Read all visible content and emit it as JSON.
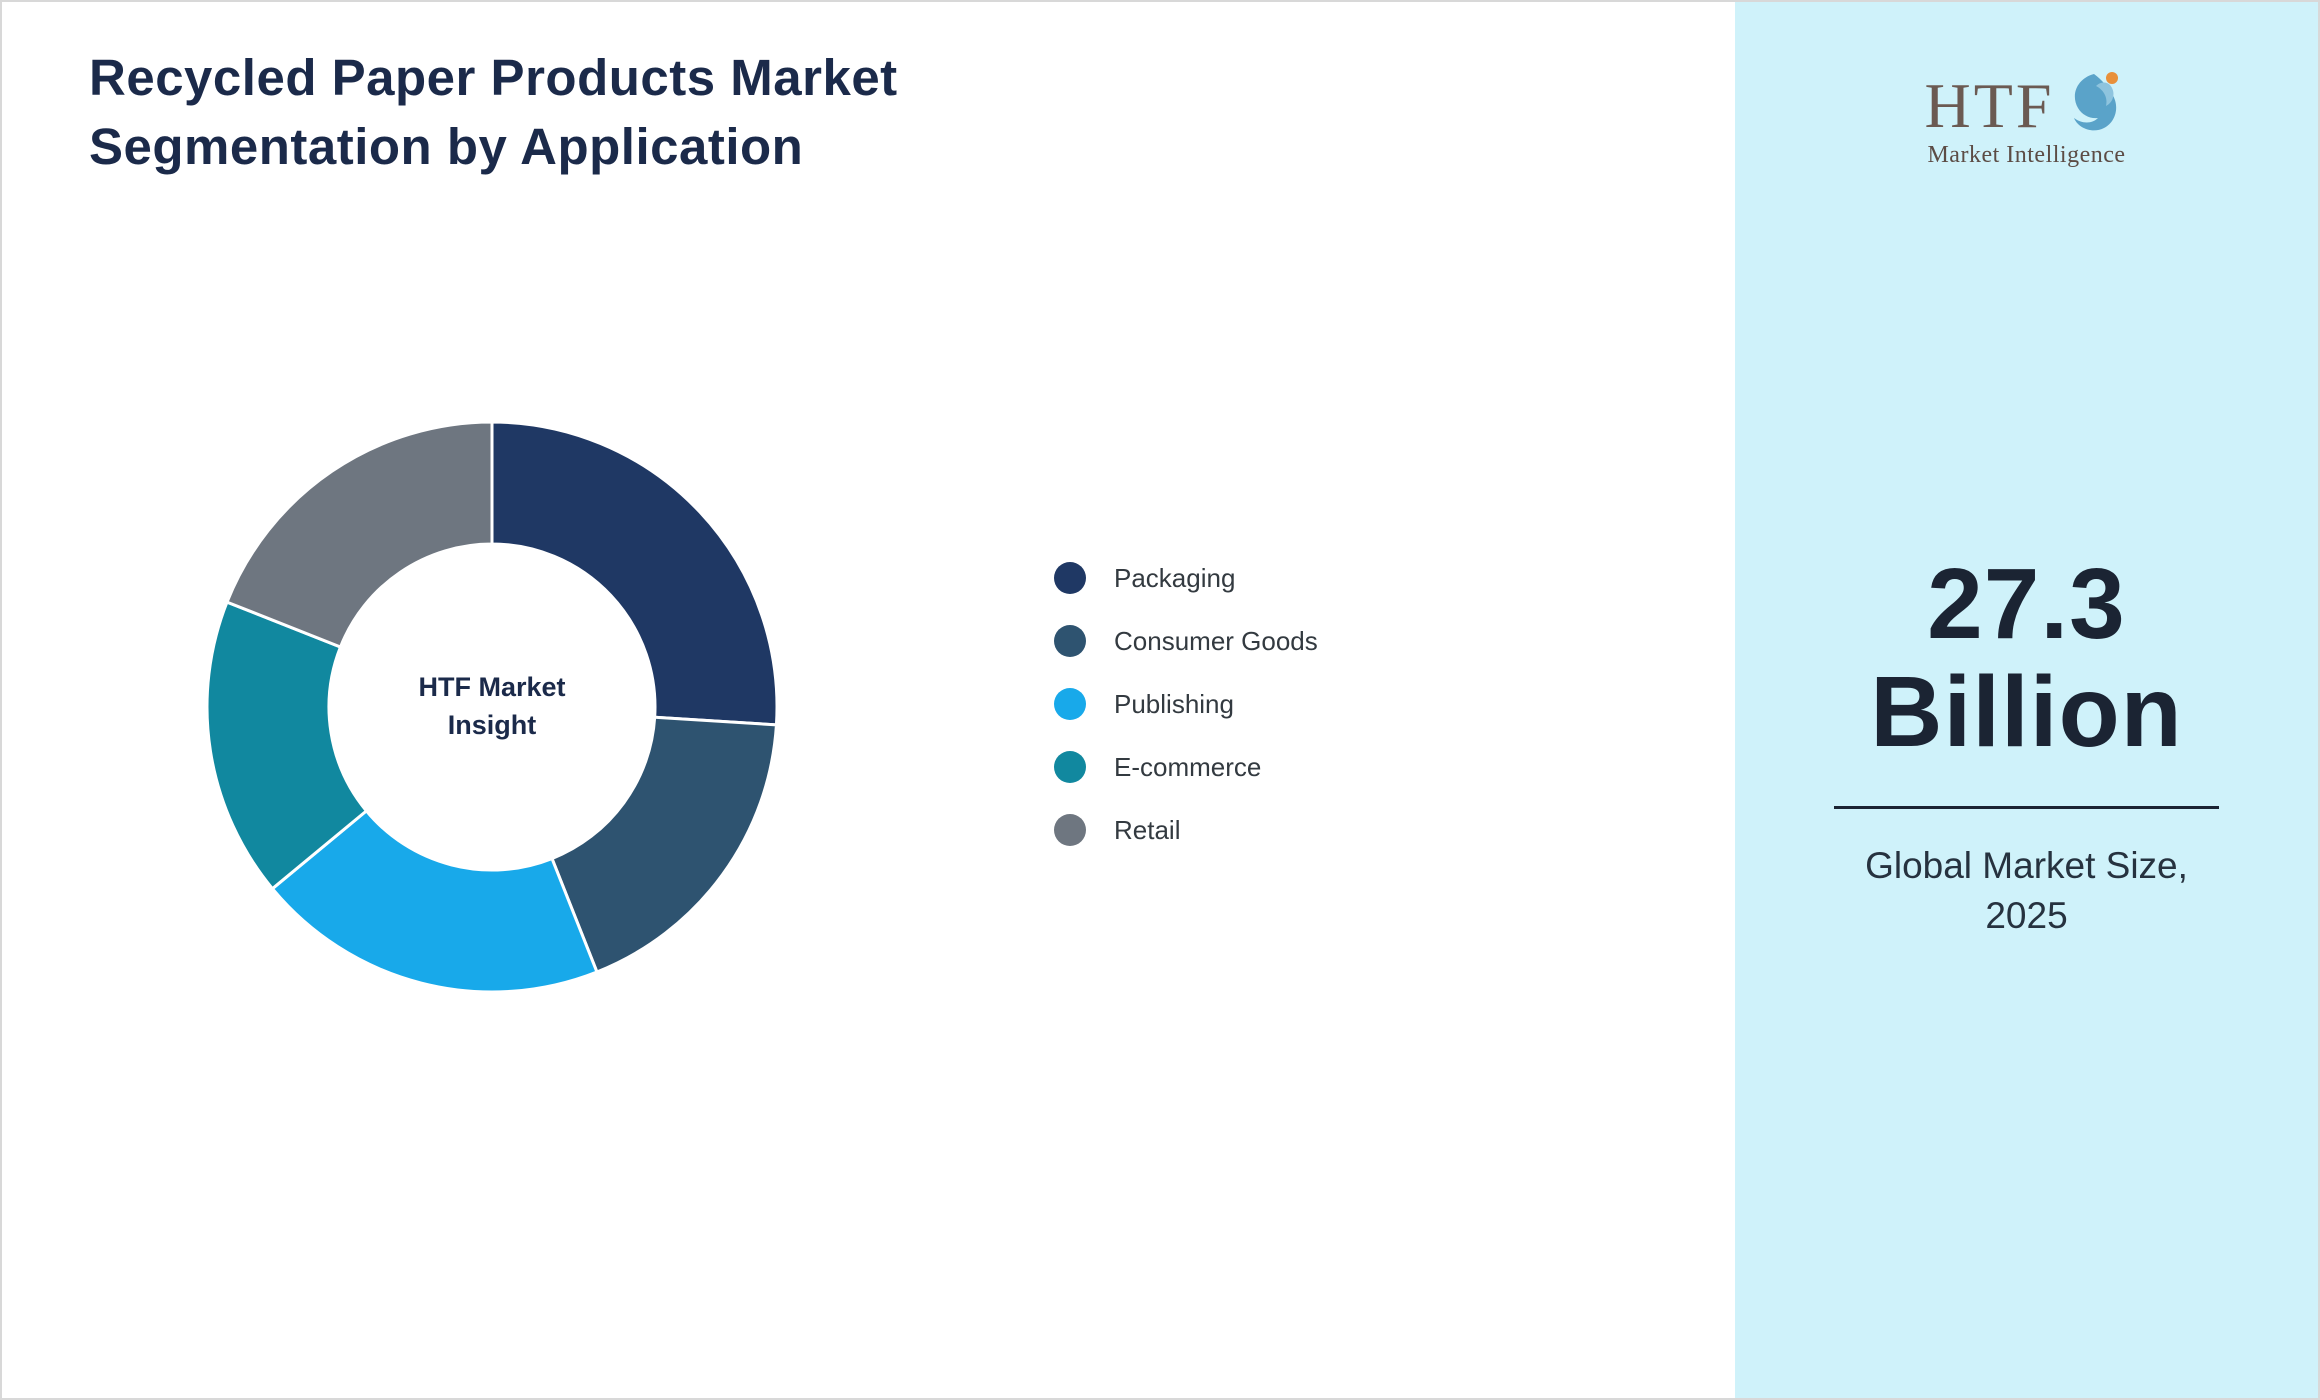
{
  "title": {
    "line1": "Recycled Paper Products Market",
    "line2": "Segmentation by Application"
  },
  "chart_data": {
    "type": "pie",
    "subtype": "donut",
    "title": "Recycled Paper Products Market Segmentation by Application",
    "categories": [
      "Packaging",
      "Consumer Goods",
      "Publishing",
      "E-commerce",
      "Retail"
    ],
    "values": [
      26,
      18,
      20,
      17,
      19
    ],
    "colors": [
      "#1f3864",
      "#2e5370",
      "#18a9ea",
      "#11889f",
      "#6e7680"
    ],
    "start_angle_deg": 0,
    "direction": "clockwise",
    "legend_position": "right",
    "center_label_line1": "HTF Market",
    "center_label_line2": "Insight"
  },
  "sidebar": {
    "background": "#cff2fa",
    "logo": {
      "text": "HTF",
      "subtext": "Market Intelligence",
      "dolphin_color": "#5aa3c9",
      "accent_color": "#e8903a"
    },
    "market_size_value": "27.3",
    "market_size_unit": "Billion",
    "caption_line1": "Global Market Size,",
    "caption_line2": "2025"
  }
}
